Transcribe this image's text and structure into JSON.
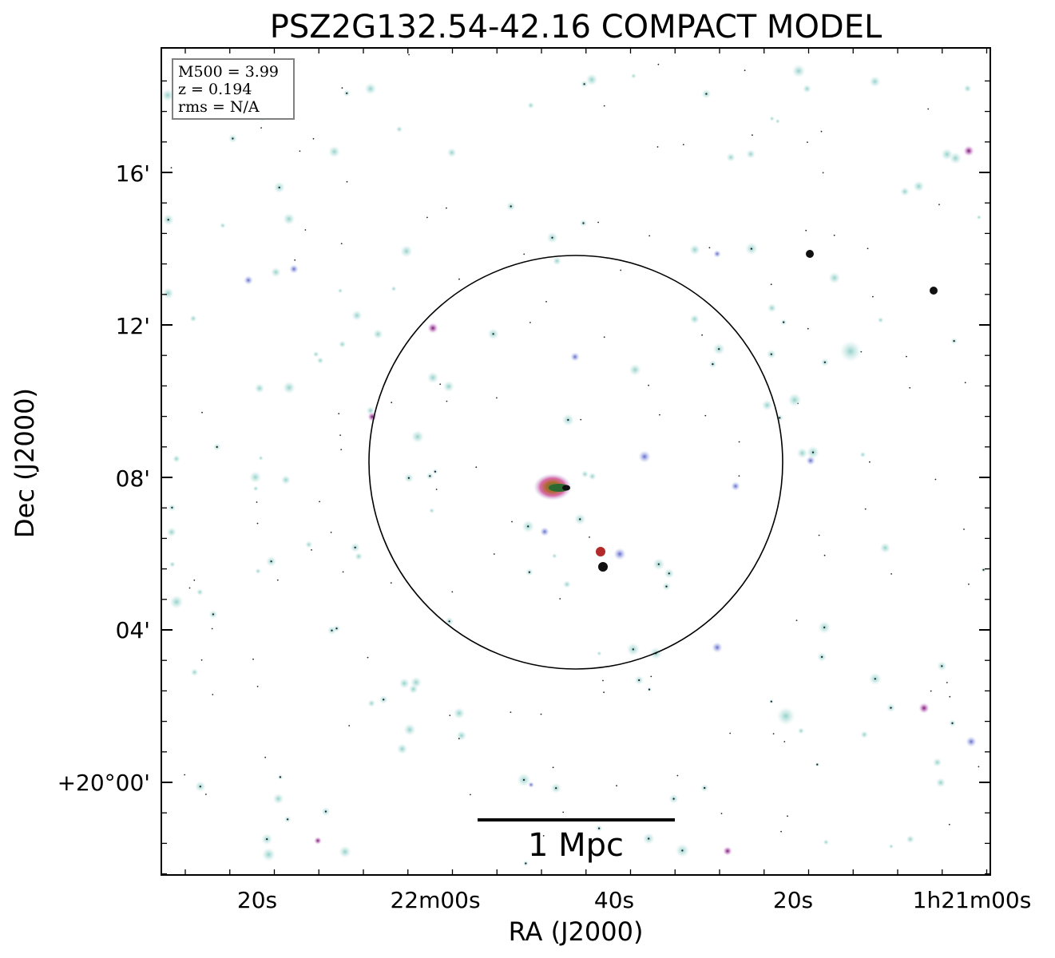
{
  "figure": {
    "title": "PSZ2G132.54-42.16 COMPACT MODEL",
    "info_box": {
      "lines": [
        "M500 = 3.99",
        "z = 0.194",
        "rms = N/A"
      ]
    },
    "x_axis": {
      "label": "RA (J2000)",
      "tick_labels": [
        "20s",
        "22m00s",
        "40s",
        "20s",
        "1h21m00s"
      ]
    },
    "y_axis": {
      "label": "Dec (J2000)",
      "tick_labels": [
        "16'",
        "12'",
        "08'",
        "04'",
        "+20°00'"
      ]
    },
    "scale_bar": {
      "label": "1 Mpc"
    },
    "colors": {
      "frame": "#000000",
      "background": "#ffffff",
      "source_halo": "#9fd3cf",
      "source_core_blue": "#5a5fc8",
      "source_core_magenta": "#b0308a",
      "source_core_red": "#b22a2a",
      "source_core_green": "#2f8a3a",
      "info_border": "#808080"
    }
  }
}
